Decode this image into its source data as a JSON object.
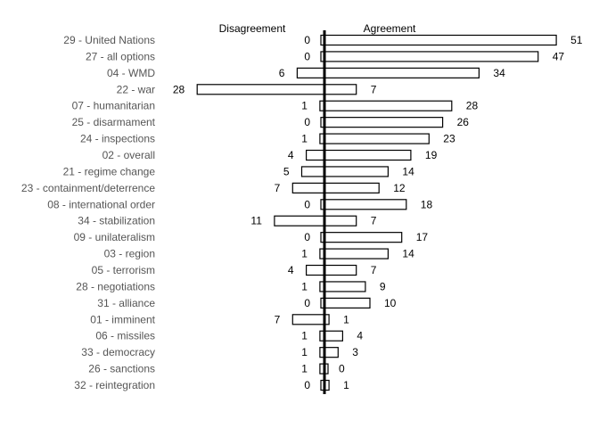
{
  "chart_data": {
    "type": "bar",
    "orientation": "diverging-horizontal",
    "headers": {
      "left": "Disagreement",
      "right": "Agreement"
    },
    "categories": [
      "29 - United Nations",
      "27 - all options",
      "04 - WMD",
      "22 - war",
      "07 - humanitarian",
      "25 - disarmament",
      "24 - inspections",
      "02 - overall",
      "21 - regime change",
      "23 - containment/deterrence",
      "08 - international order",
      "34 - stabilization",
      "09 - unilateralism",
      "03 - region",
      "05 - terrorism",
      "28 - negotiations",
      "31 - alliance",
      "01 - imminent",
      "06 - missiles",
      "33 - democracy",
      "26 - sanctions",
      "32 - reintegration"
    ],
    "series": [
      {
        "name": "Disagreement",
        "values": [
          0,
          0,
          6,
          28,
          1,
          0,
          1,
          4,
          5,
          7,
          0,
          11,
          0,
          1,
          4,
          1,
          0,
          7,
          1,
          1,
          1,
          0
        ]
      },
      {
        "name": "Agreement",
        "values": [
          51,
          47,
          34,
          7,
          28,
          26,
          23,
          19,
          14,
          12,
          18,
          7,
          17,
          14,
          7,
          9,
          10,
          1,
          4,
          3,
          0,
          1
        ]
      }
    ],
    "grid": false,
    "colors": {
      "bar_fill": "#ffffff",
      "bar_stroke": "#000000",
      "axis": "#000000",
      "category_text": "#555555"
    }
  }
}
